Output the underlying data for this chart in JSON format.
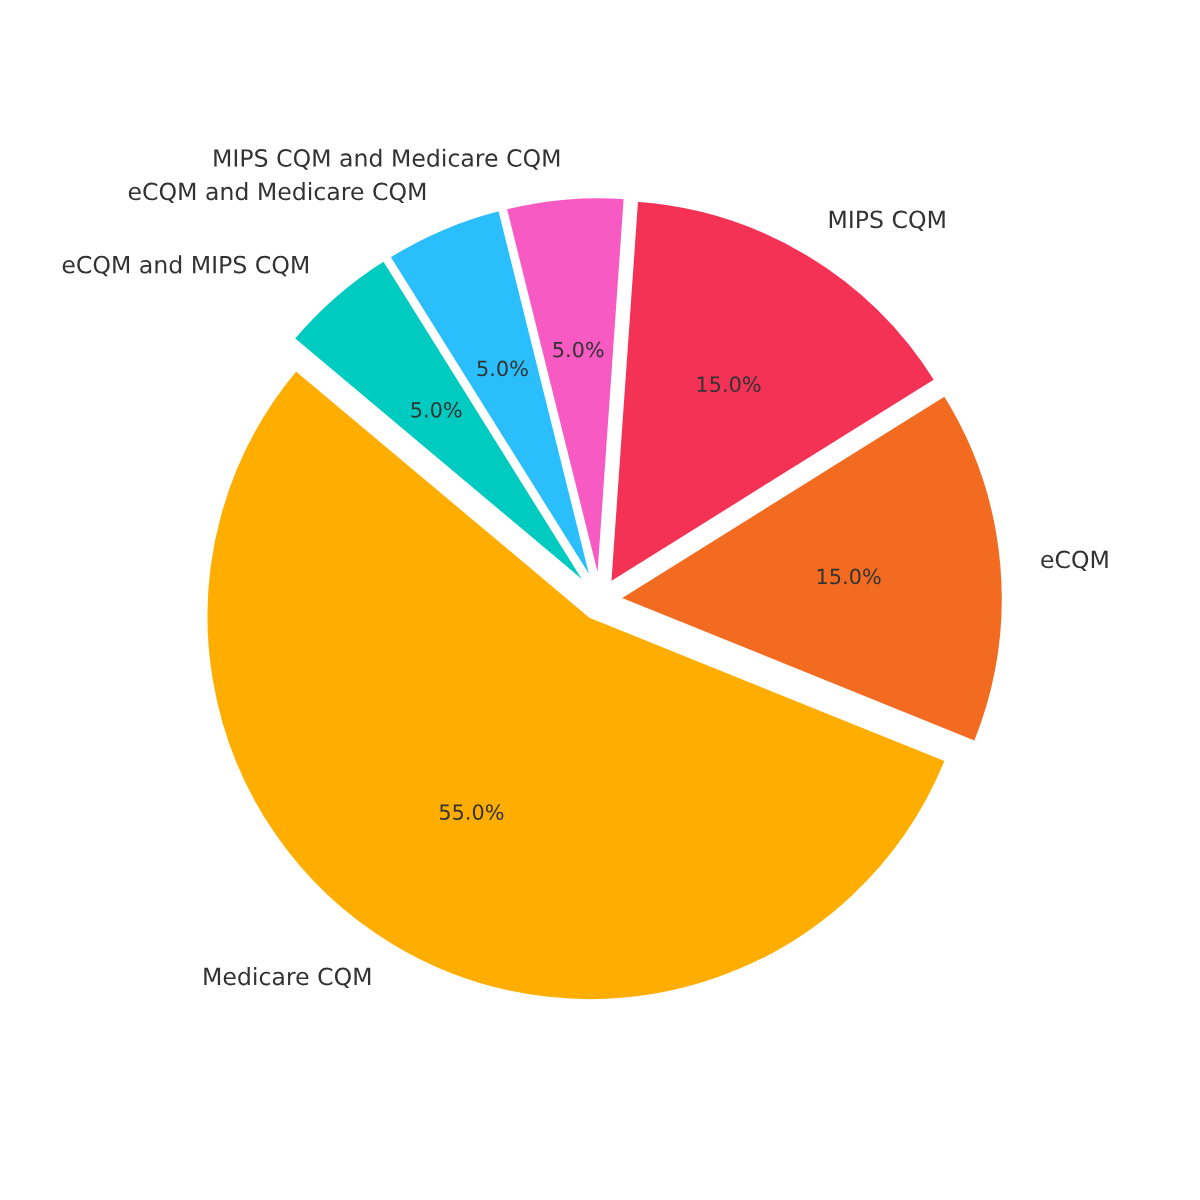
{
  "chart_data": {
    "type": "pie",
    "categories": [
      "Medicare CQM",
      "eCQM",
      "MIPS CQM",
      "MIPS CQM and Medicare CQM",
      "eCQM and Medicare CQM",
      "eCQM and MIPS CQM"
    ],
    "values": [
      55,
      15,
      15,
      5,
      5,
      5
    ],
    "value_labels": [
      "55.0%",
      "15.0%",
      "15.0%",
      "5.0%",
      "5.0%",
      "5.0%"
    ],
    "colors": [
      "#ffae00",
      "#f26b21",
      "#f43256",
      "#f75ac3",
      "#2bbefd",
      "#00cbc0"
    ]
  }
}
